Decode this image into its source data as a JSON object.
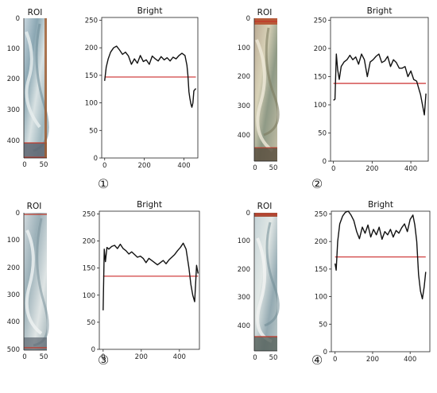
{
  "colors": {
    "line": "#111111",
    "threshold": "#d04040",
    "roi_band_top": "#c0392b",
    "roi_band_bottom": "#6a5a4a"
  },
  "chart_data": [
    {
      "type": "line",
      "title": "Bright",
      "marker": "①",
      "xlim": [
        -15,
        470
      ],
      "ylim": [
        0,
        255
      ],
      "xticks": [
        0,
        200,
        400
      ],
      "yticks": [
        0,
        50,
        100,
        150,
        200,
        250
      ],
      "threshold": 147,
      "series": [
        {
          "x": [
            0,
            8,
            18,
            30,
            45,
            60,
            75,
            90,
            105,
            120,
            135,
            150,
            165,
            180,
            195,
            210,
            225,
            240,
            255,
            270,
            285,
            300,
            315,
            330,
            345,
            360,
            375,
            390,
            405,
            415,
            420,
            425,
            430,
            435,
            440,
            445,
            450,
            460
          ],
          "y": [
            140,
            165,
            180,
            192,
            200,
            203,
            196,
            188,
            192,
            185,
            170,
            180,
            172,
            186,
            175,
            178,
            170,
            185,
            180,
            176,
            184,
            178,
            182,
            176,
            183,
            180,
            186,
            190,
            186,
            168,
            150,
            120,
            108,
            98,
            92,
            100,
            122,
            126
          ]
        }
      ],
      "roi": {
        "xticks": [
          0,
          50
        ],
        "yticks": [
          0,
          100,
          200,
          300,
          400
        ],
        "ylim": [
          0,
          460
        ],
        "xlim": [
          0,
          60
        ],
        "band_top": null,
        "band_bottom": [
          410,
          460
        ]
      }
    },
    {
      "type": "line",
      "title": "Bright",
      "marker": "②",
      "xlim": [
        -15,
        490
      ],
      "ylim": [
        0,
        255
      ],
      "xticks": [
        0,
        200,
        400
      ],
      "yticks": [
        0,
        50,
        100,
        150,
        200,
        250
      ],
      "threshold": 138,
      "series": [
        {
          "x": [
            0,
            8,
            15,
            22,
            30,
            40,
            55,
            70,
            85,
            100,
            115,
            130,
            145,
            160,
            175,
            190,
            205,
            220,
            235,
            250,
            265,
            280,
            295,
            310,
            325,
            340,
            355,
            370,
            385,
            400,
            415,
            430,
            440,
            450,
            460,
            470,
            478
          ],
          "y": [
            108,
            110,
            190,
            162,
            145,
            168,
            176,
            180,
            188,
            180,
            185,
            172,
            190,
            180,
            150,
            176,
            180,
            186,
            190,
            175,
            178,
            186,
            168,
            180,
            175,
            165,
            165,
            168,
            150,
            160,
            145,
            142,
            130,
            118,
            100,
            82,
            120
          ]
        }
      ],
      "roi": {
        "xticks": [
          0,
          50
        ],
        "yticks": [
          0,
          100,
          200,
          300,
          400
        ],
        "ylim": [
          0,
          490
        ],
        "xlim": [
          0,
          60
        ],
        "band_top": [
          0,
          25
        ],
        "band_bottom": [
          440,
          490
        ]
      }
    },
    {
      "type": "line",
      "title": "Bright",
      "marker": "③",
      "xlim": [
        -20,
        505
      ],
      "ylim": [
        0,
        255
      ],
      "xticks": [
        0,
        200,
        400
      ],
      "yticks": [
        0,
        50,
        100,
        150,
        200,
        250
      ],
      "threshold": 135,
      "series": [
        {
          "x": [
            0,
            6,
            12,
            20,
            30,
            45,
            60,
            75,
            90,
            105,
            120,
            135,
            150,
            165,
            180,
            195,
            210,
            225,
            240,
            255,
            270,
            285,
            300,
            315,
            330,
            345,
            360,
            375,
            390,
            405,
            420,
            435,
            450,
            460,
            470,
            480,
            490,
            498
          ],
          "y": [
            72,
            185,
            162,
            188,
            185,
            190,
            192,
            186,
            194,
            186,
            182,
            176,
            180,
            175,
            170,
            172,
            168,
            160,
            168,
            164,
            160,
            156,
            160,
            164,
            158,
            165,
            170,
            175,
            182,
            188,
            196,
            185,
            150,
            120,
            100,
            88,
            155,
            140
          ]
        }
      ],
      "roi": {
        "xticks": [
          0,
          50
        ],
        "yticks": [
          0,
          100,
          200,
          300,
          400,
          500
        ],
        "ylim": [
          0,
          505
        ],
        "xlim": [
          0,
          60
        ],
        "band_top": [
          0,
          15
        ],
        "band_bottom": [
          490,
          505
        ]
      }
    },
    {
      "type": "line",
      "title": "Bright",
      "marker": "④",
      "xlim": [
        -20,
        505
      ],
      "ylim": [
        0,
        255
      ],
      "xticks": [
        0,
        200,
        400
      ],
      "yticks": [
        0,
        50,
        100,
        150,
        200,
        250
      ],
      "threshold": 172,
      "series": [
        {
          "x": [
            0,
            6,
            14,
            25,
            40,
            55,
            70,
            85,
            100,
            115,
            130,
            145,
            160,
            175,
            190,
            205,
            220,
            235,
            250,
            265,
            280,
            295,
            310,
            325,
            340,
            355,
            370,
            385,
            400,
            415,
            425,
            435,
            445,
            455,
            465,
            475,
            483
          ],
          "y": [
            160,
            148,
            200,
            232,
            246,
            253,
            255,
            248,
            238,
            218,
            205,
            226,
            215,
            230,
            208,
            222,
            212,
            226,
            204,
            218,
            212,
            222,
            208,
            220,
            215,
            225,
            232,
            218,
            240,
            248,
            230,
            200,
            140,
            110,
            96,
            118,
            145
          ]
        }
      ],
      "roi": {
        "xticks": [
          0,
          50
        ],
        "yticks": [
          0,
          100,
          200,
          300,
          400
        ],
        "ylim": [
          0,
          485
        ],
        "xlim": [
          0,
          60
        ],
        "band_top": [
          0,
          12
        ],
        "band_bottom": [
          430,
          485
        ]
      }
    }
  ]
}
